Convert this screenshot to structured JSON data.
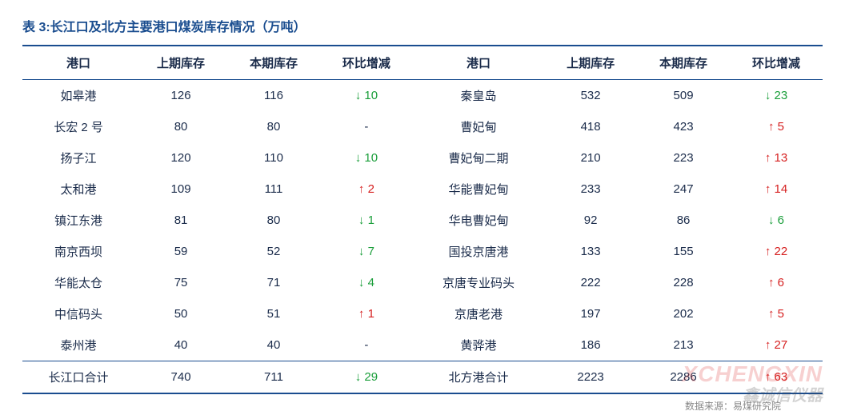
{
  "title": "表 3:长江口及北方主要港口煤炭库存情况（万吨）",
  "columns": {
    "port1": "港口",
    "prev1": "上期库存",
    "curr1": "本期库存",
    "chg1": "环比增减",
    "port2": "港口",
    "prev2": "上期库存",
    "curr2": "本期库存",
    "chg2": "环比增减"
  },
  "rows": [
    {
      "p1": "如皋港",
      "v1": "126",
      "c1": "116",
      "d1": {
        "dir": "down",
        "val": "10"
      },
      "p2": "秦皇岛",
      "v2": "532",
      "c2": "509",
      "d2": {
        "dir": "down",
        "val": "23"
      }
    },
    {
      "p1": "长宏 2 号",
      "v1": "80",
      "c1": "80",
      "d1": {
        "dir": "same",
        "val": "-"
      },
      "p2": "曹妃甸",
      "v2": "418",
      "c2": "423",
      "d2": {
        "dir": "up",
        "val": "5"
      }
    },
    {
      "p1": "扬子江",
      "v1": "120",
      "c1": "110",
      "d1": {
        "dir": "down",
        "val": "10"
      },
      "p2": "曹妃甸二期",
      "v2": "210",
      "c2": "223",
      "d2": {
        "dir": "up",
        "val": "13"
      }
    },
    {
      "p1": "太和港",
      "v1": "109",
      "c1": "111",
      "d1": {
        "dir": "up",
        "val": "2"
      },
      "p2": "华能曹妃甸",
      "v2": "233",
      "c2": "247",
      "d2": {
        "dir": "up",
        "val": "14"
      }
    },
    {
      "p1": "镇江东港",
      "v1": "81",
      "c1": "80",
      "d1": {
        "dir": "down",
        "val": "1"
      },
      "p2": "华电曹妃甸",
      "v2": "92",
      "c2": "86",
      "d2": {
        "dir": "down",
        "val": "6"
      }
    },
    {
      "p1": "南京西坝",
      "v1": "59",
      "c1": "52",
      "d1": {
        "dir": "down",
        "val": "7"
      },
      "p2": "国投京唐港",
      "v2": "133",
      "c2": "155",
      "d2": {
        "dir": "up",
        "val": "22"
      }
    },
    {
      "p1": "华能太仓",
      "v1": "75",
      "c1": "71",
      "d1": {
        "dir": "down",
        "val": "4"
      },
      "p2": "京唐专业码头",
      "v2": "222",
      "c2": "228",
      "d2": {
        "dir": "up",
        "val": "6"
      }
    },
    {
      "p1": "中信码头",
      "v1": "50",
      "c1": "51",
      "d1": {
        "dir": "up",
        "val": "1"
      },
      "p2": "京唐老港",
      "v2": "197",
      "c2": "202",
      "d2": {
        "dir": "up",
        "val": "5"
      }
    },
    {
      "p1": "泰州港",
      "v1": "40",
      "c1": "40",
      "d1": {
        "dir": "same",
        "val": "-"
      },
      "p2": "黄骅港",
      "v2": "186",
      "c2": "213",
      "d2": {
        "dir": "up",
        "val": "27"
      }
    }
  ],
  "total": {
    "p1": "长江口合计",
    "v1": "740",
    "c1": "711",
    "d1": {
      "dir": "down",
      "val": "29"
    },
    "p2": "北方港合计",
    "v2": "2223",
    "c2": "2286",
    "d2": {
      "dir": "up",
      "val": "63"
    }
  },
  "source": "数据来源：易煤研究院",
  "watermark": {
    "line1": "XCHENGXIN",
    "line2": "鑫诚信仪器"
  },
  "styling": {
    "type": "table",
    "colors": {
      "title": "#1a4d8f",
      "rule": "#1a4d8f",
      "text": "#1a2b4a",
      "up": "#d62020",
      "down": "#1a9e3a",
      "background": "#ffffff",
      "source": "#888888"
    },
    "fontsize": {
      "title": 16,
      "body": 15,
      "source": 12
    },
    "arrows": {
      "up": "↑",
      "down": "↓",
      "same": ""
    }
  }
}
